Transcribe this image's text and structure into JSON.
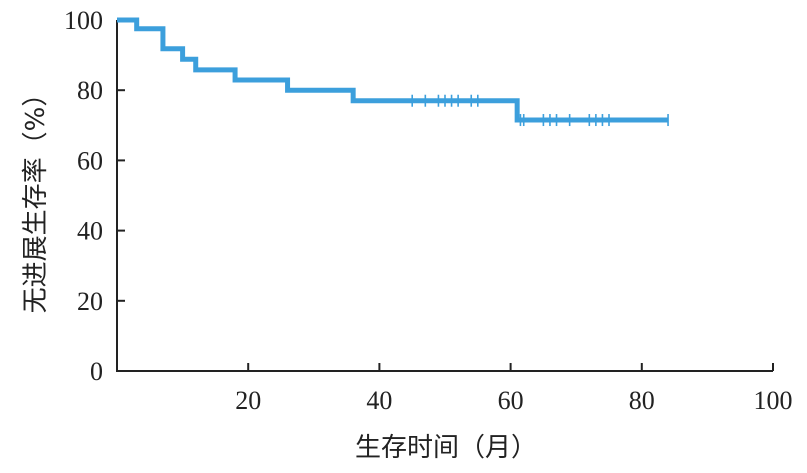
{
  "chart_data": {
    "type": "line",
    "step": true,
    "title": "",
    "xlabel": "生存时间（月）",
    "ylabel": "无进展生存率（%）",
    "xlim": [
      0,
      100
    ],
    "ylim": [
      0,
      100
    ],
    "x_ticks": [
      0,
      20,
      40,
      60,
      80,
      100
    ],
    "x_tick_labels": [
      "",
      "20",
      "40",
      "60",
      "80",
      "100"
    ],
    "y_ticks": [
      0,
      20,
      40,
      60,
      80,
      100
    ],
    "y_tick_labels": [
      "0",
      "20",
      "40",
      "60",
      "80",
      "100"
    ],
    "grid": false,
    "legend": "none",
    "series": [
      {
        "color": "#3c9fdc",
        "steps": [
          {
            "x": 0,
            "y": 100
          },
          {
            "x": 3,
            "y": 97.5
          },
          {
            "x": 7,
            "y": 91.8
          },
          {
            "x": 10,
            "y": 88.8
          },
          {
            "x": 12,
            "y": 85.8
          },
          {
            "x": 18,
            "y": 82.9
          },
          {
            "x": 26,
            "y": 80
          },
          {
            "x": 36,
            "y": 77
          },
          {
            "x": 61,
            "y": 71.5
          }
        ],
        "end_x": 84,
        "censored": [
          {
            "x": 45,
            "y": 77
          },
          {
            "x": 47,
            "y": 77
          },
          {
            "x": 49,
            "y": 77
          },
          {
            "x": 50,
            "y": 77
          },
          {
            "x": 51,
            "y": 77
          },
          {
            "x": 52,
            "y": 77
          },
          {
            "x": 54,
            "y": 77
          },
          {
            "x": 55,
            "y": 77
          },
          {
            "x": 61.5,
            "y": 71.5
          },
          {
            "x": 62,
            "y": 71.5
          },
          {
            "x": 65,
            "y": 71.5
          },
          {
            "x": 66,
            "y": 71.5
          },
          {
            "x": 67,
            "y": 71.5
          },
          {
            "x": 69,
            "y": 71.5
          },
          {
            "x": 72,
            "y": 71.5
          },
          {
            "x": 73,
            "y": 71.5
          },
          {
            "x": 74,
            "y": 71.5
          },
          {
            "x": 75,
            "y": 71.5
          },
          {
            "x": 84,
            "y": 71.5
          }
        ]
      }
    ]
  }
}
